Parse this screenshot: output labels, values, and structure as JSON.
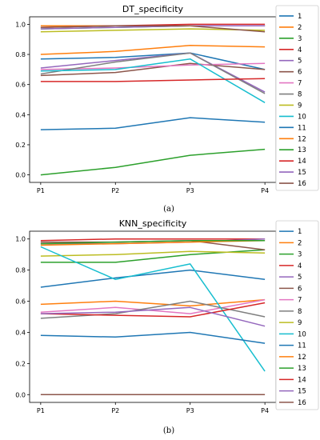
{
  "chart_data": [
    {
      "type": "line",
      "title": "DT_specificity",
      "panel_label": "(a)",
      "categories": [
        "P1",
        "P2",
        "P3",
        "P4"
      ],
      "ylim": [
        -0.05,
        1.05
      ],
      "yticks": [
        "0.0",
        "0.2",
        "0.4",
        "0.6",
        "0.8",
        "1.0"
      ],
      "legend_position": "right-outside",
      "series": [
        {
          "name": "1",
          "color": "#1f77b4",
          "values": [
            0.77,
            0.78,
            0.81,
            0.7
          ]
        },
        {
          "name": "2",
          "color": "#ff7f0e",
          "values": [
            0.99,
            0.99,
            0.99,
            0.99
          ]
        },
        {
          "name": "3",
          "color": "#2ca02c",
          "values": [
            0.97,
            0.98,
            0.99,
            0.99
          ]
        },
        {
          "name": "4",
          "color": "#d62728",
          "values": [
            0.98,
            0.99,
            1.0,
            1.0
          ]
        },
        {
          "name": "5",
          "color": "#9467bd",
          "values": [
            0.71,
            0.76,
            0.81,
            0.55
          ]
        },
        {
          "name": "6",
          "color": "#8c564b",
          "values": [
            0.66,
            0.68,
            0.74,
            0.7
          ]
        },
        {
          "name": "7",
          "color": "#e377c2",
          "values": [
            0.7,
            0.71,
            0.73,
            0.74
          ]
        },
        {
          "name": "8",
          "color": "#7f7f7f",
          "values": [
            0.67,
            0.75,
            0.81,
            0.54
          ]
        },
        {
          "name": "9",
          "color": "#bcbd22",
          "values": [
            0.95,
            0.96,
            0.97,
            0.96
          ]
        },
        {
          "name": "10",
          "color": "#17becf",
          "values": [
            0.69,
            0.7,
            0.77,
            0.48
          ]
        },
        {
          "name": "11",
          "color": "#1f77b4",
          "values": [
            0.3,
            0.31,
            0.38,
            0.35
          ]
        },
        {
          "name": "12",
          "color": "#ff7f0e",
          "values": [
            0.8,
            0.82,
            0.86,
            0.85
          ]
        },
        {
          "name": "13",
          "color": "#2ca02c",
          "values": [
            0.0,
            0.05,
            0.13,
            0.17
          ]
        },
        {
          "name": "14",
          "color": "#d62728",
          "values": [
            0.62,
            0.62,
            0.63,
            0.64
          ]
        },
        {
          "name": "15",
          "color": "#9467bd",
          "values": [
            0.97,
            0.98,
            0.99,
            0.99
          ]
        },
        {
          "name": "16",
          "color": "#8c564b",
          "values": [
            0.98,
            0.99,
            0.99,
            0.95
          ]
        }
      ]
    },
    {
      "type": "line",
      "title": "KNN_specificity",
      "panel_label": "(b)",
      "categories": [
        "P1",
        "P2",
        "P3",
        "P4"
      ],
      "ylim": [
        -0.05,
        1.05
      ],
      "yticks": [
        "0.0",
        "0.2",
        "0.4",
        "0.6",
        "0.8",
        "1.0"
      ],
      "legend_position": "right-outside",
      "series": [
        {
          "name": "1",
          "color": "#1f77b4",
          "values": [
            0.69,
            0.75,
            0.8,
            0.74
          ]
        },
        {
          "name": "2",
          "color": "#ff7f0e",
          "values": [
            0.58,
            0.6,
            0.57,
            0.61
          ]
        },
        {
          "name": "3",
          "color": "#2ca02c",
          "values": [
            0.85,
            0.85,
            0.9,
            0.93
          ]
        },
        {
          "name": "4",
          "color": "#d62728",
          "values": [
            0.99,
            1.0,
            1.0,
            1.0
          ]
        },
        {
          "name": "5",
          "color": "#9467bd",
          "values": [
            0.97,
            0.97,
            0.98,
            1.0
          ]
        },
        {
          "name": "6",
          "color": "#8c564b",
          "values": [
            0.98,
            0.98,
            0.99,
            0.93
          ]
        },
        {
          "name": "7",
          "color": "#e377c2",
          "values": [
            0.53,
            0.56,
            0.52,
            0.61
          ]
        },
        {
          "name": "8",
          "color": "#7f7f7f",
          "values": [
            0.49,
            0.52,
            0.6,
            0.5
          ]
        },
        {
          "name": "9",
          "color": "#bcbd22",
          "values": [
            0.89,
            0.9,
            0.92,
            0.91
          ]
        },
        {
          "name": "10",
          "color": "#17becf",
          "values": [
            0.95,
            0.74,
            0.84,
            0.15
          ]
        },
        {
          "name": "11",
          "color": "#1f77b4",
          "values": [
            0.38,
            0.37,
            0.4,
            0.33
          ]
        },
        {
          "name": "12",
          "color": "#ff7f0e",
          "values": [
            0.96,
            0.97,
            0.98,
            0.99
          ]
        },
        {
          "name": "13",
          "color": "#2ca02c",
          "values": [
            0.97,
            0.98,
            0.99,
            0.99
          ]
        },
        {
          "name": "14",
          "color": "#d62728",
          "values": [
            0.52,
            0.51,
            0.5,
            0.59
          ]
        },
        {
          "name": "15",
          "color": "#9467bd",
          "values": [
            0.52,
            0.53,
            0.56,
            0.44
          ]
        },
        {
          "name": "16",
          "color": "#8c564b",
          "values": [
            0.0,
            0.0,
            0.0,
            0.0
          ]
        }
      ]
    }
  ]
}
